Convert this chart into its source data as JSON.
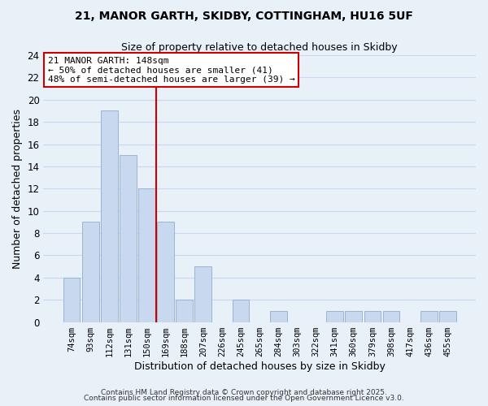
{
  "title_line1": "21, MANOR GARTH, SKIDBY, COTTINGHAM, HU16 5UF",
  "title_line2": "Size of property relative to detached houses in Skidby",
  "xlabel": "Distribution of detached houses by size in Skidby",
  "ylabel": "Number of detached properties",
  "bar_labels": [
    "74sqm",
    "93sqm",
    "112sqm",
    "131sqm",
    "150sqm",
    "169sqm",
    "188sqm",
    "207sqm",
    "226sqm",
    "245sqm",
    "265sqm",
    "284sqm",
    "303sqm",
    "322sqm",
    "341sqm",
    "360sqm",
    "379sqm",
    "398sqm",
    "417sqm",
    "436sqm",
    "455sqm"
  ],
  "bar_values": [
    4,
    9,
    19,
    15,
    12,
    9,
    2,
    5,
    0,
    2,
    0,
    1,
    0,
    0,
    1,
    1,
    1,
    1,
    0,
    1,
    1
  ],
  "bar_color": "#c8d8ee",
  "bar_edgecolor": "#9ab4d4",
  "highlight_index": 4,
  "highlight_line_color": "#cc0000",
  "ylim": [
    0,
    24
  ],
  "yticks": [
    0,
    2,
    4,
    6,
    8,
    10,
    12,
    14,
    16,
    18,
    20,
    22,
    24
  ],
  "annotation_title": "21 MANOR GARTH: 148sqm",
  "annotation_line1": "← 50% of detached houses are smaller (41)",
  "annotation_line2": "48% of semi-detached houses are larger (39) →",
  "annotation_box_color": "#ffffff",
  "annotation_box_edgecolor": "#cc0000",
  "grid_color": "#c8d8ee",
  "bg_color": "#e8f0f8",
  "footer_line1": "Contains HM Land Registry data © Crown copyright and database right 2025.",
  "footer_line2": "Contains public sector information licensed under the Open Government Licence v3.0."
}
